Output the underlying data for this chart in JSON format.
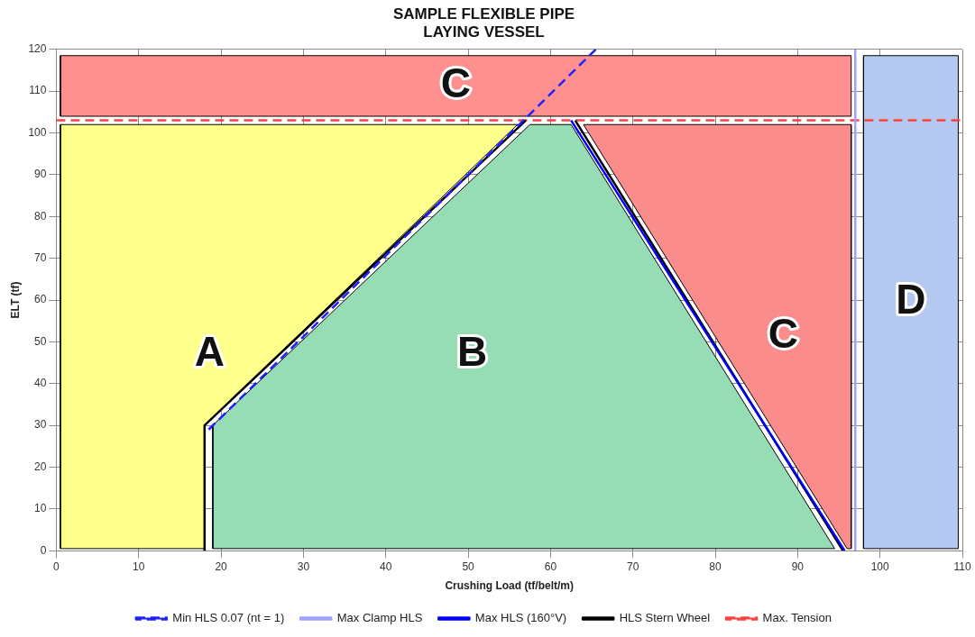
{
  "chart_data": {
    "type": "line",
    "title": "SAMPLE FLEXIBLE PIPE\nLAYING VESSEL",
    "xlabel": "Crushing Load (tf/belt/m)",
    "ylabel": "ELT (tf)",
    "xlim": [
      0,
      110
    ],
    "xticks": [
      0,
      10,
      20,
      30,
      40,
      50,
      60,
      70,
      80,
      90,
      100,
      110
    ],
    "ylim": [
      0,
      120
    ],
    "yticks": [
      0,
      10,
      20,
      30,
      40,
      50,
      60,
      70,
      80,
      90,
      100,
      110,
      120
    ],
    "grid": true,
    "legend": "bottom",
    "marker": "none",
    "series": [
      {
        "name": "C",
        "type": "area",
        "color": "#ff9090",
        "x": [
          0.5,
          96.5,
          96.5,
          0.5
        ],
        "values": [
          104,
          104,
          118.5,
          118.5
        ]
      },
      {
        "name": "A",
        "type": "area",
        "color": "#ffff8c",
        "x": [
          0.5,
          18,
          18,
          56,
          0.5
        ],
        "values": [
          0.5,
          0.5,
          30,
          102,
          102
        ]
      },
      {
        "name": "B",
        "type": "area",
        "color": "#96dcb4",
        "x": [
          19,
          94.5,
          62.5,
          57.5,
          19
        ],
        "values": [
          0.5,
          0.5,
          102,
          102,
          30
        ]
      },
      {
        "name": "C",
        "type": "area",
        "color": "#fa8c8c",
        "x": [
          64,
          96.5,
          96.5,
          96
        ],
        "values": [
          102,
          102,
          0.5,
          0.5
        ]
      },
      {
        "name": "D",
        "type": "area",
        "color": "#b4c8f0",
        "x": [
          98,
          109.5,
          109.5,
          98
        ],
        "values": [
          0.5,
          0.5,
          118.5,
          118.5
        ]
      },
      {
        "name": "Min HLS 0.07 (nt = 1)",
        "type": "line",
        "color": "#2020ff",
        "line_style": "dashed",
        "x": [
          18.5,
          65.5
        ],
        "values": [
          29,
          120
        ]
      },
      {
        "name": "Max Clamp HLS",
        "type": "line",
        "color": "#a0a0ff",
        "line_style": "solid",
        "x": [
          97,
          97
        ],
        "values": [
          0,
          120
        ]
      },
      {
        "name": "Max HLS (160°V)",
        "type": "line",
        "color": "#0000ff",
        "line_style": "solid",
        "x": [
          62.5,
          95.7
        ],
        "values": [
          103,
          0
        ]
      },
      {
        "name": "HLS Stern Wheel",
        "type": "line",
        "color": "#000000",
        "line_style": "solid",
        "x": [
          18,
          18,
          57,
          60,
          63,
          95.5
        ],
        "values": [
          0,
          30,
          103,
          null,
          103,
          0
        ]
      },
      {
        "name": "Max. Tension",
        "type": "line",
        "color": "#ff4040",
        "line_style": "dashed",
        "x": [
          0,
          110
        ],
        "values": [
          103,
          103
        ]
      }
    ]
  }
}
